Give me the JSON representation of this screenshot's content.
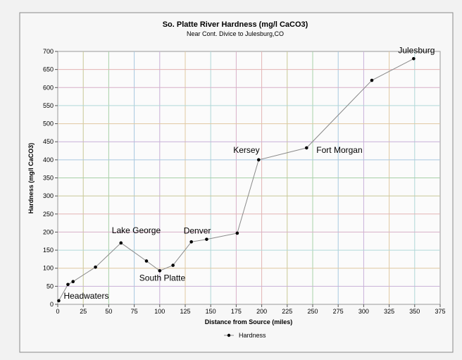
{
  "chart_data": {
    "type": "line",
    "title": "So. Platte River Hardness (mg/l CaCO3)",
    "subtitle": "Near Cont. Divice to Julesburg,CO",
    "xlabel": "Distance from Source (miles)",
    "ylabel": "Hardness (mg/l CaCO3)",
    "xlim": [
      0,
      375
    ],
    "ylim": [
      0,
      700
    ],
    "x_ticks": [
      0,
      25,
      50,
      75,
      100,
      125,
      150,
      175,
      200,
      225,
      250,
      275,
      300,
      325,
      350,
      375
    ],
    "y_ticks": [
      0,
      50,
      100,
      150,
      200,
      250,
      300,
      350,
      400,
      450,
      500,
      550,
      600,
      650,
      700
    ],
    "x_tick_labels": [
      "0",
      "25",
      "50",
      "75",
      "100",
      "125",
      "150",
      "175",
      "200",
      "225",
      "250",
      "275",
      "300",
      "325",
      "350",
      "375"
    ],
    "y_tick_labels": [
      "0",
      "50",
      "100",
      "150",
      "200",
      "250",
      "300",
      "350",
      "400",
      "450",
      "500",
      "550",
      "600",
      "650",
      "700"
    ],
    "grid": true,
    "legend_position": "bottom",
    "series": [
      {
        "name": "Hardness",
        "color": "#8a8a8a",
        "marker_color": "#000000",
        "points": [
          {
            "x": 1,
            "y": 10
          },
          {
            "x": 10,
            "y": 55
          },
          {
            "x": 15,
            "y": 63
          },
          {
            "x": 37,
            "y": 103
          },
          {
            "x": 62,
            "y": 170
          },
          {
            "x": 87,
            "y": 120
          },
          {
            "x": 100,
            "y": 93
          },
          {
            "x": 113,
            "y": 108
          },
          {
            "x": 131,
            "y": 173
          },
          {
            "x": 146,
            "y": 180
          },
          {
            "x": 176,
            "y": 197
          },
          {
            "x": 197,
            "y": 400
          },
          {
            "x": 244,
            "y": 433
          },
          {
            "x": 308,
            "y": 620
          },
          {
            "x": 349,
            "y": 680
          }
        ]
      }
    ],
    "annotations": [
      {
        "text": "Headwaters",
        "x": 1,
        "y": 10
      },
      {
        "text": "Lake George",
        "x": 62,
        "y": 170
      },
      {
        "text": "South Platte",
        "x": 100,
        "y": 93
      },
      {
        "text": "Denver",
        "x": 131,
        "y": 173
      },
      {
        "text": "Kersey",
        "x": 197,
        "y": 400
      },
      {
        "text": "Fort Morgan",
        "x": 244,
        "y": 433
      },
      {
        "text": "Julesburg",
        "x": 349,
        "y": 680
      }
    ]
  }
}
